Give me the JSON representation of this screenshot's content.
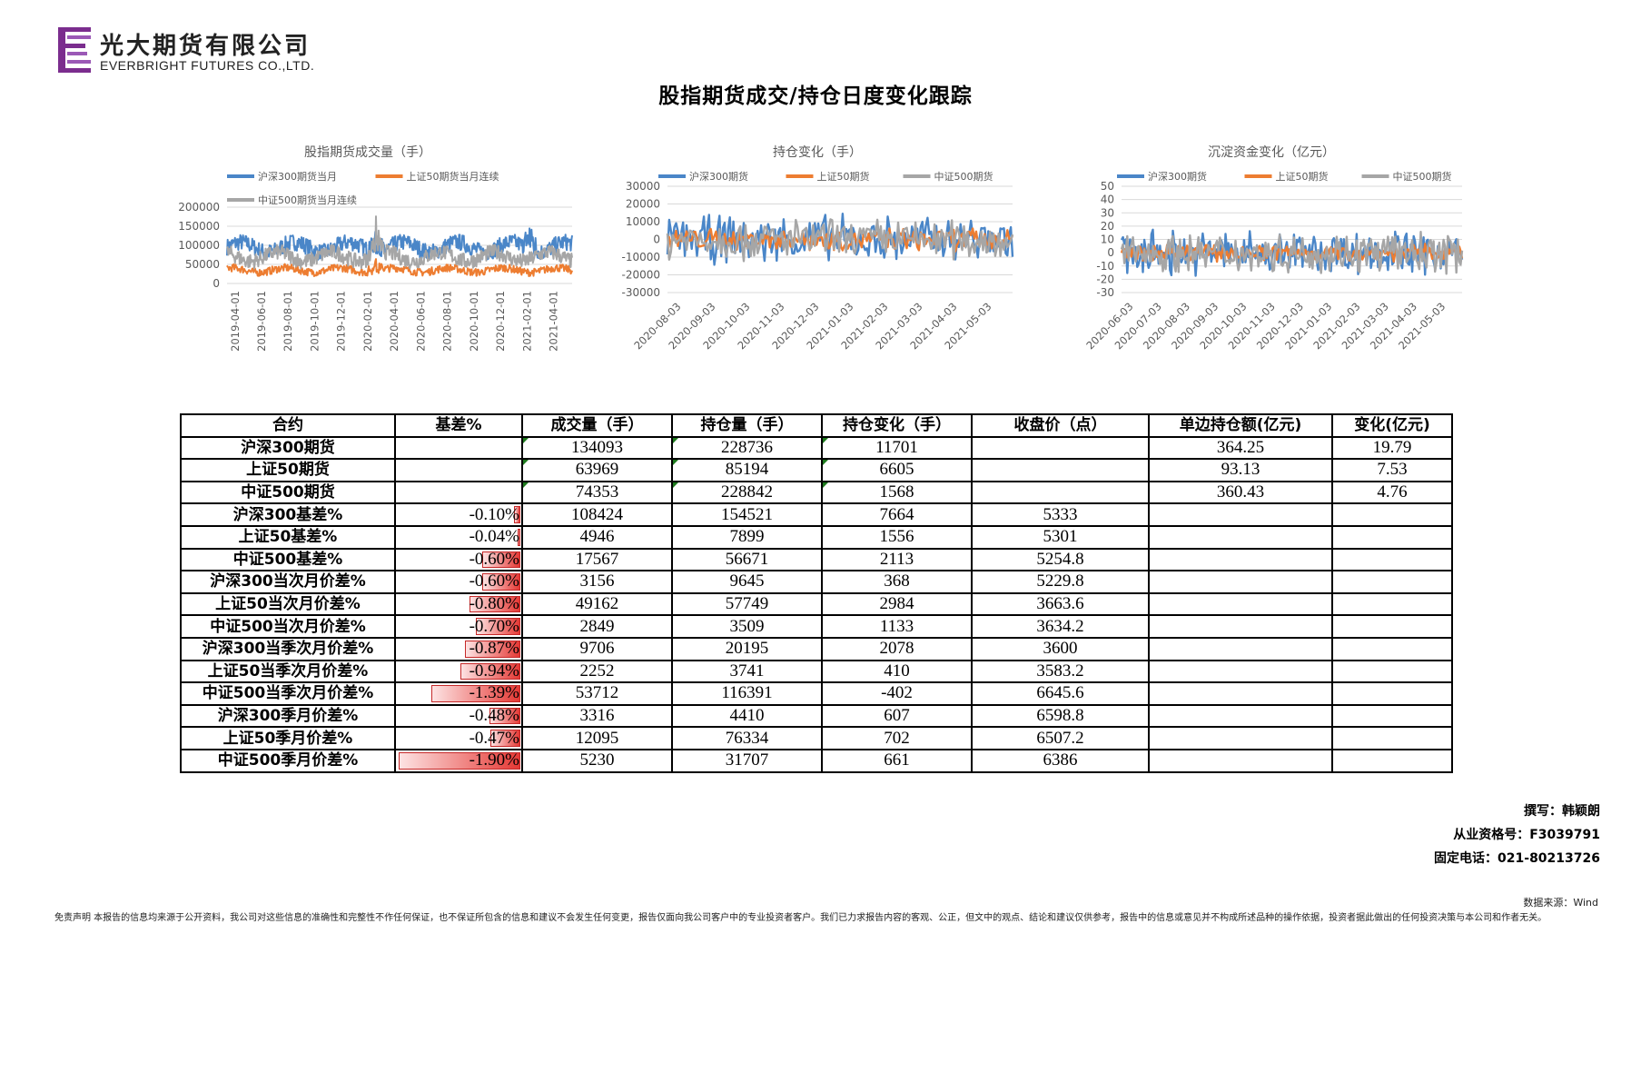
{
  "logo": {
    "cn": "光大期货有限公司",
    "en": "EVERBRIGHT FUTURES CO.,LTD."
  },
  "title": "股指期货成交/持仓日度变化跟踪",
  "chart_data": [
    {
      "type": "line",
      "title": "股指期货成交量（手）",
      "x_tick_labels": [
        "2019-04-01",
        "2019-06-01",
        "2019-08-01",
        "2019-10-01",
        "2019-12-01",
        "2020-02-01",
        "2020-04-01",
        "2020-06-01",
        "2020-08-01",
        "2020-10-01",
        "2020-12-01",
        "2021-02-01",
        "2021-04-01"
      ],
      "y_ticks": [
        0,
        50000,
        100000,
        150000,
        200000
      ],
      "ylim": [
        0,
        200000
      ],
      "legend": "top",
      "series": [
        {
          "name": "沪深300期货当月",
          "color": "#4a86c8",
          "base": 95000,
          "amp": 22000,
          "spikes": [
            0.43,
            165000,
            0.88,
            165000
          ]
        },
        {
          "name": "上证50期货当月连续",
          "color": "#ed7d31",
          "base": 35000,
          "amp": 10000,
          "spikes": [
            0.43,
            70000
          ]
        },
        {
          "name": "中证500期货当月连续",
          "color": "#a6a6a6",
          "base": 70000,
          "amp": 20000,
          "spikes": [
            0.43,
            160000
          ]
        }
      ]
    },
    {
      "type": "line",
      "title": "持仓变化（手）",
      "x_tick_labels": [
        "2020-08-03",
        "2020-09-03",
        "2020-10-03",
        "2020-11-03",
        "2020-12-03",
        "2021-01-03",
        "2021-02-03",
        "2021-03-03",
        "2021-04-03",
        "2021-05-03"
      ],
      "y_ticks": [
        -30000,
        -20000,
        -10000,
        0,
        10000,
        20000,
        30000
      ],
      "ylim": [
        -30000,
        30000
      ],
      "legend": "top",
      "series": [
        {
          "name": "沪深300期货",
          "color": "#4a86c8",
          "amp": 13000
        },
        {
          "name": "上证50期货",
          "color": "#ed7d31",
          "amp": 6000
        },
        {
          "name": "中证500期货",
          "color": "#a6a6a6",
          "amp": 11000
        }
      ]
    },
    {
      "type": "line",
      "title": "沉淀资金变化（亿元）",
      "x_tick_labels": [
        "2020-06-03",
        "2020-07-03",
        "2020-08-03",
        "2020-09-03",
        "2020-10-03",
        "2020-11-03",
        "2020-12-03",
        "2021-01-03",
        "2021-02-03",
        "2021-03-03",
        "2021-04-03",
        "2021-05-03"
      ],
      "y_ticks": [
        -30,
        -20,
        -10,
        0,
        10,
        20,
        30,
        40,
        50
      ],
      "ylim": [
        -30,
        50
      ],
      "legend": "top",
      "series": [
        {
          "name": "沪深300期货",
          "color": "#4a86c8",
          "amp": 16
        },
        {
          "name": "上证50期货",
          "color": "#ed7d31",
          "amp": 6
        },
        {
          "name": "中证500期货",
          "color": "#a6a6a6",
          "amp": 14
        }
      ]
    }
  ],
  "table": {
    "headers": [
      "合约",
      "基差%",
      "成交量（手）",
      "持仓量（手）",
      "持仓变化（手）",
      "收盘价（点）",
      "单边持仓额(亿元)",
      "变化(亿元)"
    ],
    "rows": [
      {
        "name": "沪深300期货",
        "basis": "",
        "basis_pct": 0,
        "volume": "134093",
        "oi": "228736",
        "oi_change": "11701",
        "close": "",
        "amount": "364.25",
        "amount_change": "19.79",
        "flags": true
      },
      {
        "name": "上证50期货",
        "basis": "",
        "basis_pct": 0,
        "volume": "63969",
        "oi": "85194",
        "oi_change": "6605",
        "close": "",
        "amount": "93.13",
        "amount_change": "7.53",
        "flags": true
      },
      {
        "name": "中证500期货",
        "basis": "",
        "basis_pct": 0,
        "volume": "74353",
        "oi": "228842",
        "oi_change": "1568",
        "close": "",
        "amount": "360.43",
        "amount_change": "4.76",
        "flags": true
      },
      {
        "name": "沪深300基差%",
        "basis": "-0.10%",
        "basis_pct": 0.1,
        "volume": "108424",
        "oi": "154521",
        "oi_change": "7664",
        "close": "5333",
        "amount": "",
        "amount_change": ""
      },
      {
        "name": "上证50基差%",
        "basis": "-0.04%",
        "basis_pct": 0.04,
        "volume": "4946",
        "oi": "7899",
        "oi_change": "1556",
        "close": "5301",
        "amount": "",
        "amount_change": ""
      },
      {
        "name": "中证500基差%",
        "basis": "-0.60%",
        "basis_pct": 0.6,
        "volume": "17567",
        "oi": "56671",
        "oi_change": "2113",
        "close": "5254.8",
        "amount": "",
        "amount_change": ""
      },
      {
        "name": "沪深300当次月价差%",
        "basis": "-0.60%",
        "basis_pct": 0.6,
        "volume": "3156",
        "oi": "9645",
        "oi_change": "368",
        "close": "5229.8",
        "amount": "",
        "amount_change": ""
      },
      {
        "name": "上证50当次月价差%",
        "basis": "-0.80%",
        "basis_pct": 0.8,
        "volume": "49162",
        "oi": "57749",
        "oi_change": "2984",
        "close": "3663.6",
        "amount": "",
        "amount_change": ""
      },
      {
        "name": "中证500当次月价差%",
        "basis": "-0.70%",
        "basis_pct": 0.7,
        "volume": "2849",
        "oi": "3509",
        "oi_change": "1133",
        "close": "3634.2",
        "amount": "",
        "amount_change": ""
      },
      {
        "name": "沪深300当季次月价差%",
        "basis": "-0.87%",
        "basis_pct": 0.87,
        "volume": "9706",
        "oi": "20195",
        "oi_change": "2078",
        "close": "3600",
        "amount": "",
        "amount_change": ""
      },
      {
        "name": "上证50当季次月价差%",
        "basis": "-0.94%",
        "basis_pct": 0.94,
        "volume": "2252",
        "oi": "3741",
        "oi_change": "410",
        "close": "3583.2",
        "amount": "",
        "amount_change": ""
      },
      {
        "name": "中证500当季次月价差%",
        "basis": "-1.39%",
        "basis_pct": 1.39,
        "volume": "53712",
        "oi": "116391",
        "oi_change": "-402",
        "close": "6645.6",
        "amount": "",
        "amount_change": ""
      },
      {
        "name": "沪深300季月价差%",
        "basis": "-0.48%",
        "basis_pct": 0.48,
        "volume": "3316",
        "oi": "4410",
        "oi_change": "607",
        "close": "6598.8",
        "amount": "",
        "amount_change": ""
      },
      {
        "name": "上证50季月价差%",
        "basis": "-0.47%",
        "basis_pct": 0.47,
        "volume": "12095",
        "oi": "76334",
        "oi_change": "702",
        "close": "6507.2",
        "amount": "",
        "amount_change": ""
      },
      {
        "name": "中证500季月价差%",
        "basis": "-1.90%",
        "basis_pct": 1.9,
        "volume": "5230",
        "oi": "31707",
        "oi_change": "661",
        "close": "6386",
        "amount": "",
        "amount_change": ""
      }
    ]
  },
  "author": "撰写：韩颖朗",
  "license": "从业资格号：F3039791",
  "phone": "固定电话：021-80213726",
  "source": "数据来源：Wind",
  "disclaimer": "免责声明    本报告的信息均来源于公开资料，我公司对这些信息的准确性和完整性不作任何保证，也不保证所包含的信息和建议不会发生任何变更，报告仅面向我公司客户中的专业投资者客户。我们已力求报告内容的客观、公正，但文中的观点、结论和建议仅供参考，报告中的信息或意见并不构成所述品种的操作依据，投资者据此做出的任何投资决策与本公司和作者无关。"
}
